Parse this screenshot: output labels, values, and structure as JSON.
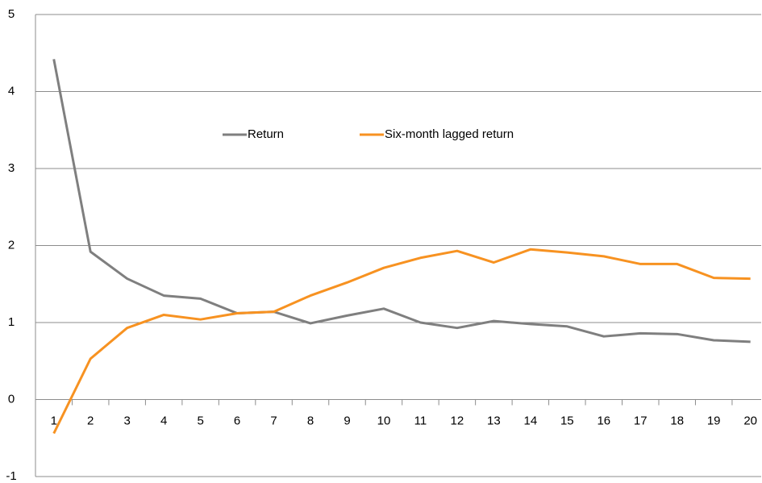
{
  "chart_data": {
    "type": "line",
    "categories": [
      "1",
      "2",
      "3",
      "4",
      "5",
      "6",
      "7",
      "8",
      "9",
      "10",
      "11",
      "12",
      "13",
      "14",
      "15",
      "16",
      "17",
      "18",
      "19",
      "20"
    ],
    "series": [
      {
        "name": "Return",
        "color": "#7f7f7f",
        "values": [
          4.42,
          1.92,
          1.57,
          1.35,
          1.31,
          1.12,
          1.14,
          0.99,
          1.09,
          1.18,
          1.0,
          0.93,
          1.02,
          0.98,
          0.95,
          0.82,
          0.86,
          0.85,
          0.77,
          0.75
        ]
      },
      {
        "name": "Six-month lagged return",
        "color": "#f79221",
        "values": [
          -0.44,
          0.53,
          0.93,
          1.1,
          1.04,
          1.12,
          1.14,
          1.35,
          1.52,
          1.71,
          1.84,
          1.93,
          1.78,
          1.95,
          1.91,
          1.86,
          1.76,
          1.76,
          1.58,
          1.57
        ]
      }
    ],
    "ylim": [
      -1,
      5
    ],
    "yticks": [
      -1,
      0,
      1,
      2,
      3,
      4,
      5
    ],
    "grid": true
  }
}
